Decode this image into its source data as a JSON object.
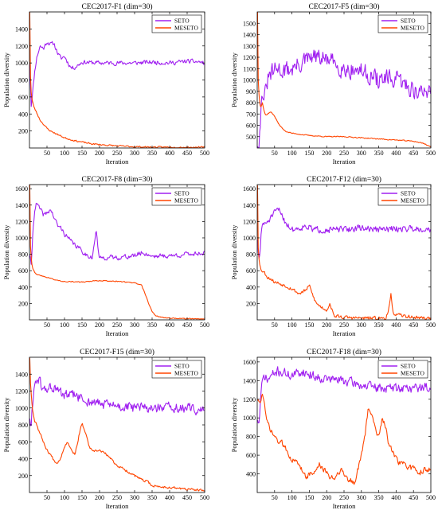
{
  "chart_data": [
    {
      "type": "line",
      "title": "CEC2017-F1 (dim=30)",
      "xlabel": "Iteration",
      "ylabel": "Population diversity",
      "xlim": [
        0,
        500
      ],
      "ylim": [
        0,
        1600
      ],
      "xticks": [
        50,
        100,
        150,
        200,
        250,
        300,
        350,
        400,
        450,
        500
      ],
      "yticks": [
        200,
        400,
        600,
        800,
        1000,
        1200,
        1400
      ],
      "legend": "top-right",
      "series": [
        {
          "name": "SETO",
          "color": "#a020f0",
          "noise": 35,
          "seed": 11,
          "x": [
            1,
            5,
            10,
            15,
            20,
            30,
            40,
            50,
            60,
            70,
            80,
            90,
            100,
            110,
            120,
            130,
            150,
            200,
            250,
            300,
            350,
            400,
            450,
            490,
            500
          ],
          "y": [
            1000,
            500,
            700,
            900,
            1050,
            1200,
            1170,
            1250,
            1220,
            1230,
            1120,
            1050,
            1080,
            1000,
            940,
            950,
            1010,
            1000,
            1000,
            1000,
            1010,
            1000,
            1020,
            1010,
            990
          ]
        },
        {
          "name": "MESETO",
          "color": "#ff4500",
          "noise": 12,
          "seed": 23,
          "x": [
            1,
            2,
            4,
            6,
            8,
            10,
            15,
            20,
            30,
            40,
            50,
            60,
            80,
            100,
            125,
            150,
            175,
            200,
            250,
            300,
            350,
            400,
            450,
            500
          ],
          "y": [
            1600,
            1000,
            700,
            600,
            560,
            520,
            460,
            420,
            330,
            280,
            230,
            200,
            160,
            120,
            90,
            70,
            50,
            40,
            25,
            15,
            10,
            10,
            8,
            8
          ]
        }
      ]
    },
    {
      "type": "line",
      "title": "CEC2017-F5 (dim=30)",
      "xlabel": "Iteration",
      "ylabel": "Population diversity",
      "xlim": [
        0,
        500
      ],
      "ylim": [
        400,
        1600
      ],
      "xticks": [
        50,
        100,
        150,
        200,
        250,
        300,
        350,
        400,
        450,
        500
      ],
      "yticks": [
        500,
        600,
        700,
        800,
        900,
        1000,
        1100,
        1200,
        1300,
        1400,
        1500
      ],
      "legend": "top-right",
      "series": [
        {
          "name": "SETO",
          "color": "#a020f0",
          "noise": 110,
          "seed": 31,
          "x": [
            1,
            5,
            10,
            15,
            20,
            25,
            30,
            40,
            60,
            80,
            100,
            130,
            160,
            200,
            250,
            300,
            350,
            400,
            430,
            460,
            480,
            500
          ],
          "y": [
            450,
            420,
            700,
            900,
            850,
            880,
            1000,
            1050,
            1100,
            1080,
            1100,
            1150,
            1200,
            1180,
            1100,
            1080,
            1000,
            1000,
            950,
            900,
            880,
            930
          ]
        },
        {
          "name": "MESETO",
          "color": "#ff4500",
          "noise": 6,
          "seed": 37,
          "x": [
            1,
            3,
            6,
            10,
            15,
            20,
            25,
            30,
            40,
            50,
            60,
            70,
            80,
            100,
            150,
            200,
            250,
            300,
            350,
            400,
            450,
            480,
            500
          ],
          "y": [
            1600,
            1000,
            820,
            760,
            800,
            720,
            690,
            700,
            720,
            680,
            620,
            580,
            550,
            530,
            510,
            500,
            500,
            490,
            480,
            470,
            460,
            440,
            410
          ]
        }
      ]
    },
    {
      "type": "line",
      "title": "CEC2017-F8 (dim=30)",
      "xlabel": "Iteration",
      "ylabel": "Population diversity",
      "xlim": [
        0,
        500
      ],
      "ylim": [
        0,
        1650
      ],
      "xticks": [
        50,
        100,
        150,
        200,
        250,
        300,
        350,
        400,
        450,
        500
      ],
      "yticks": [
        200,
        400,
        600,
        800,
        1000,
        1200,
        1400,
        1600
      ],
      "legend": "top-right",
      "series": [
        {
          "name": "SETO",
          "color": "#a020f0",
          "noise": 40,
          "seed": 41,
          "x": [
            1,
            5,
            10,
            15,
            20,
            30,
            40,
            50,
            60,
            70,
            80,
            90,
            100,
            120,
            140,
            160,
            180,
            190,
            195,
            200,
            210,
            250,
            300,
            320,
            350,
            400,
            450,
            500
          ],
          "y": [
            800,
            650,
            1100,
            1350,
            1420,
            1350,
            1280,
            1300,
            1350,
            1250,
            1150,
            1120,
            1050,
            950,
            880,
            800,
            760,
            1100,
            900,
            740,
            760,
            760,
            780,
            820,
            780,
            780,
            800,
            820
          ]
        },
        {
          "name": "MESETO",
          "color": "#ff4500",
          "noise": 8,
          "seed": 43,
          "x": [
            1,
            3,
            6,
            10,
            15,
            20,
            30,
            50,
            80,
            100,
            150,
            200,
            250,
            300,
            320,
            330,
            340,
            350,
            360,
            380,
            400,
            450,
            500
          ],
          "y": [
            1650,
            900,
            700,
            620,
            580,
            560,
            540,
            520,
            480,
            470,
            460,
            480,
            470,
            450,
            420,
            320,
            200,
            100,
            50,
            30,
            20,
            15,
            10
          ]
        }
      ]
    },
    {
      "type": "line",
      "title": "CEC2017-F12 (dim=30)",
      "xlabel": "Iteration",
      "ylabel": "Population diversity",
      "xlim": [
        0,
        500
      ],
      "ylim": [
        0,
        1650
      ],
      "xticks": [
        50,
        100,
        150,
        200,
        250,
        300,
        350,
        400,
        450,
        500
      ],
      "yticks": [
        200,
        400,
        600,
        800,
        1000,
        1200,
        1400,
        1600
      ],
      "legend": "top-right",
      "series": [
        {
          "name": "SETO",
          "color": "#a020f0",
          "noise": 55,
          "seed": 51,
          "x": [
            1,
            4,
            8,
            12,
            16,
            20,
            30,
            40,
            50,
            60,
            70,
            80,
            100,
            120,
            140,
            160,
            200,
            250,
            300,
            350,
            400,
            450,
            500
          ],
          "y": [
            1000,
            700,
            800,
            1100,
            1200,
            1150,
            1200,
            1250,
            1300,
            1350,
            1300,
            1200,
            1100,
            1120,
            1150,
            1100,
            1100,
            1100,
            1120,
            1100,
            1110,
            1120,
            1100
          ]
        },
        {
          "name": "MESETO",
          "color": "#ff4500",
          "noise": 30,
          "seed": 53,
          "x": [
            1,
            3,
            6,
            10,
            20,
            30,
            40,
            50,
            60,
            80,
            100,
            110,
            120,
            140,
            150,
            160,
            170,
            180,
            200,
            210,
            220,
            250,
            300,
            350,
            370,
            380,
            385,
            390,
            400,
            450,
            500
          ],
          "y": [
            1650,
            900,
            700,
            620,
            580,
            520,
            500,
            460,
            450,
            420,
            380,
            350,
            320,
            360,
            420,
            300,
            200,
            170,
            120,
            200,
            50,
            30,
            20,
            20,
            20,
            150,
            300,
            100,
            60,
            30,
            20
          ]
        }
      ]
    },
    {
      "type": "line",
      "title": "CEC2017-F15 (dim=30)",
      "xlabel": "Iteration",
      "ylabel": "Population diversity",
      "xlim": [
        0,
        500
      ],
      "ylim": [
        0,
        1600
      ],
      "xticks": [
        50,
        100,
        150,
        200,
        250,
        300,
        350,
        400,
        450,
        500
      ],
      "yticks": [
        200,
        400,
        600,
        800,
        1000,
        1200,
        1400
      ],
      "legend": "top-right",
      "series": [
        {
          "name": "SETO",
          "color": "#a020f0",
          "noise": 85,
          "seed": 61,
          "x": [
            1,
            4,
            8,
            12,
            16,
            20,
            30,
            40,
            60,
            80,
            100,
            130,
            160,
            200,
            250,
            300,
            350,
            400,
            450,
            500
          ],
          "y": [
            900,
            700,
            1000,
            1200,
            1300,
            1350,
            1300,
            1200,
            1250,
            1200,
            1150,
            1150,
            1080,
            1050,
            1020,
            1000,
            1000,
            1000,
            990,
            980
          ]
        },
        {
          "name": "MESETO",
          "color": "#ff4500",
          "noise": 20,
          "seed": 67,
          "x": [
            1,
            3,
            6,
            10,
            15,
            20,
            25,
            30,
            40,
            50,
            60,
            70,
            80,
            90,
            100,
            110,
            120,
            130,
            140,
            150,
            160,
            170,
            180,
            200,
            220,
            250,
            280,
            300,
            320,
            340,
            350,
            370,
            400,
            450,
            500
          ],
          "y": [
            1600,
            1300,
            1100,
            950,
            850,
            820,
            750,
            700,
            600,
            500,
            450,
            380,
            350,
            420,
            550,
            600,
            500,
            450,
            650,
            820,
            700,
            550,
            480,
            500,
            450,
            320,
            250,
            200,
            150,
            120,
            80,
            70,
            60,
            40,
            20
          ]
        }
      ]
    },
    {
      "type": "line",
      "title": "CEC2017-F18 (dim=30)",
      "xlabel": "Iteration",
      "ylabel": "Population diversity",
      "xlim": [
        0,
        500
      ],
      "ylim": [
        200,
        1650
      ],
      "xticks": [
        50,
        100,
        150,
        200,
        250,
        300,
        350,
        400,
        450,
        500
      ],
      "yticks": [
        400,
        600,
        800,
        1000,
        1200,
        1400,
        1600
      ],
      "legend": "top-right",
      "series": [
        {
          "name": "SETO",
          "color": "#a020f0",
          "noise": 70,
          "seed": 71,
          "x": [
            1,
            4,
            8,
            12,
            16,
            20,
            30,
            40,
            60,
            80,
            100,
            130,
            160,
            200,
            250,
            300,
            350,
            400,
            450,
            500
          ],
          "y": [
            1000,
            900,
            1100,
            1300,
            1400,
            1450,
            1400,
            1450,
            1500,
            1480,
            1450,
            1500,
            1450,
            1420,
            1400,
            1350,
            1320,
            1320,
            1320,
            1330
          ]
        },
        {
          "name": "MESETO",
          "color": "#ff4500",
          "noise": 45,
          "seed": 73,
          "x": [
            1,
            5,
            10,
            15,
            20,
            25,
            30,
            40,
            50,
            60,
            80,
            100,
            120,
            140,
            160,
            180,
            200,
            220,
            240,
            260,
            280,
            300,
            310,
            320,
            330,
            340,
            350,
            360,
            370,
            380,
            400,
            420,
            450,
            470,
            490,
            500
          ],
          "y": [
            1200,
            1150,
            1200,
            1250,
            1150,
            1000,
            950,
            850,
            800,
            750,
            700,
            550,
            500,
            380,
            400,
            500,
            400,
            350,
            450,
            350,
            300,
            600,
            800,
            1100,
            1050,
            900,
            800,
            1000,
            900,
            700,
            550,
            500,
            450,
            420,
            450,
            450
          ]
        }
      ]
    }
  ]
}
